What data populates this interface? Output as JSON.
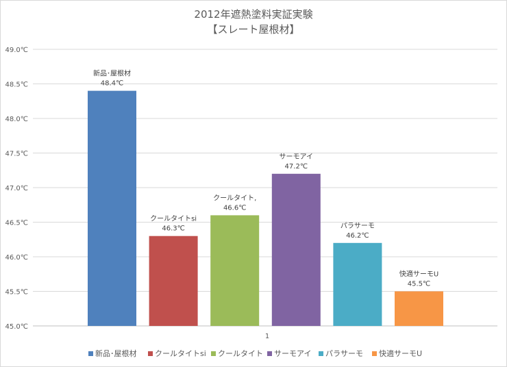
{
  "chart_data": {
    "type": "bar",
    "title": "2012年遮熱塗料実証実験",
    "subtitle": "【スレート屋根材】",
    "categories": [
      "1"
    ],
    "ylim": [
      45.0,
      49.0
    ],
    "ytick_step": 0.5,
    "y_unit": "℃",
    "grid": true,
    "legend_position": "bottom",
    "series": [
      {
        "name": "新品･屋根材",
        "label": "新品･屋根材",
        "value": 48.4,
        "value_label": "48.4℃",
        "color": "#4f81bd"
      },
      {
        "name": "クールタイトsi",
        "label": "クールタイトsi",
        "value": 46.3,
        "value_label": "46.3℃",
        "color": "#c0504d"
      },
      {
        "name": "クールタイト",
        "label": "クールタイト,",
        "value": 46.6,
        "value_label": "46.6℃",
        "color": "#9bbb59"
      },
      {
        "name": "サーモアイ",
        "label": "サーモアイ",
        "value": 47.2,
        "value_label": "47.2℃",
        "color": "#8064a2"
      },
      {
        "name": "パラサーモ",
        "label": "パラサーモ",
        "value": 46.2,
        "value_label": "46.2℃",
        "color": "#4bacc6"
      },
      {
        "name": "快適サーモU",
        "label": "快適サーモU",
        "value": 45.5,
        "value_label": "45.5℃",
        "color": "#f79646"
      }
    ]
  }
}
